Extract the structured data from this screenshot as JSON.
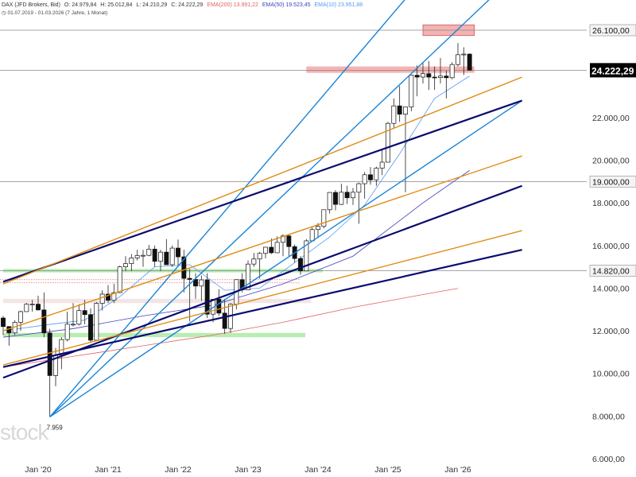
{
  "header": {
    "instrument": "DAX (JFD Brokers, Bid)",
    "open": "O: 24.979,84",
    "high": "H: 25.012,84",
    "low": "L: 24.210,29",
    "close": "C: 24.222,29",
    "ema200": "EMA(200) 13.991,22",
    "ema50": "EMA(50) 19.523,45",
    "ema10": "EMA(10) 23.951,88",
    "range": "01.07.2019 - 01.03.2026",
    "span": "(7 Jahre, 1 Monat)"
  },
  "watermark": "stock",
  "colors": {
    "ema200": "#e06060",
    "ema50": "#4040c0",
    "ema10": "#5599ee",
    "trend_blue": "#1a84d8",
    "trend_navy": "#0b0b6e",
    "trend_orange": "#e08a10",
    "zone_red": "#f2a0a0",
    "zone_green": "#a8e8a0",
    "current_price": "#000000"
  },
  "chart_data": {
    "type": "candlestick",
    "ylim": [
      6000,
      27000
    ],
    "y_ticks": [
      "6.000,00",
      "8.000,00",
      "10.000,00",
      "12.000,00",
      "14.000,00",
      "16.000,00",
      "18.000,00",
      "20.000,00",
      "22.000,00"
    ],
    "y_tick_values": [
      6000,
      8000,
      10000,
      12000,
      14000,
      16000,
      18000,
      20000,
      22000
    ],
    "x_ticks": [
      "Jan '20",
      "Jan '21",
      "Jan '22",
      "Jan '23",
      "Jan '24",
      "Jan '25",
      "Jan '26"
    ],
    "x_tick_dates": [
      "2020-01",
      "2021-01",
      "2022-01",
      "2023-01",
      "2024-01",
      "2025-01",
      "2026-01"
    ],
    "start_date": "2019-07",
    "level_labels": [
      {
        "text": "26.100,00",
        "value": 26100
      },
      {
        "text": "19.000,00",
        "value": 19000
      },
      {
        "text": "14.820,00",
        "value": 14820
      }
    ],
    "current_price": {
      "text": "24.222,29",
      "value": 24222.29
    },
    "low_annotation": {
      "text": "7.959",
      "value": 7959,
      "date": "2020-03"
    },
    "candles": [
      {
        "d": "2019-07",
        "o": 12600,
        "h": 12700,
        "l": 11800,
        "c": 12200
      },
      {
        "d": "2019-08",
        "o": 12200,
        "h": 12100,
        "l": 11300,
        "c": 11900
      },
      {
        "d": "2019-09",
        "o": 11900,
        "h": 12500,
        "l": 11800,
        "c": 12400
      },
      {
        "d": "2019-10",
        "o": 12400,
        "h": 12950,
        "l": 12000,
        "c": 12900
      },
      {
        "d": "2019-11",
        "o": 12900,
        "h": 13300,
        "l": 12900,
        "c": 13250
      },
      {
        "d": "2019-12",
        "o": 13250,
        "h": 13450,
        "l": 12900,
        "c": 13250
      },
      {
        "d": "2020-01",
        "o": 13250,
        "h": 13650,
        "l": 12950,
        "c": 12980
      },
      {
        "d": "2020-02",
        "o": 12980,
        "h": 13800,
        "l": 11700,
        "c": 11900
      },
      {
        "d": "2020-03",
        "o": 11900,
        "h": 12100,
        "l": 7959,
        "c": 9900
      },
      {
        "d": "2020-04",
        "o": 9900,
        "h": 11200,
        "l": 9400,
        "c": 10860
      },
      {
        "d": "2020-05",
        "o": 10860,
        "h": 11700,
        "l": 10200,
        "c": 11590
      },
      {
        "d": "2020-06",
        "o": 11590,
        "h": 12900,
        "l": 11500,
        "c": 12310
      },
      {
        "d": "2020-07",
        "o": 12310,
        "h": 13300,
        "l": 12200,
        "c": 12310
      },
      {
        "d": "2020-08",
        "o": 12310,
        "h": 13250,
        "l": 12250,
        "c": 12950
      },
      {
        "d": "2020-09",
        "o": 12950,
        "h": 13450,
        "l": 12300,
        "c": 12760
      },
      {
        "d": "2020-10",
        "o": 12760,
        "h": 13050,
        "l": 11450,
        "c": 11560
      },
      {
        "d": "2020-11",
        "o": 11560,
        "h": 13350,
        "l": 11550,
        "c": 13290
      },
      {
        "d": "2020-12",
        "o": 13290,
        "h": 13900,
        "l": 12950,
        "c": 13720
      },
      {
        "d": "2021-01",
        "o": 13720,
        "h": 14150,
        "l": 13300,
        "c": 13430
      },
      {
        "d": "2021-02",
        "o": 13430,
        "h": 14200,
        "l": 13300,
        "c": 13790
      },
      {
        "d": "2021-03",
        "o": 13790,
        "h": 15050,
        "l": 13800,
        "c": 15000
      },
      {
        "d": "2021-04",
        "o": 15000,
        "h": 15500,
        "l": 14800,
        "c": 15150
      },
      {
        "d": "2021-05",
        "o": 15150,
        "h": 15600,
        "l": 14800,
        "c": 15420
      },
      {
        "d": "2021-06",
        "o": 15420,
        "h": 15800,
        "l": 15300,
        "c": 15530
      },
      {
        "d": "2021-07",
        "o": 15530,
        "h": 15800,
        "l": 15000,
        "c": 15540
      },
      {
        "d": "2021-08",
        "o": 15540,
        "h": 16030,
        "l": 15500,
        "c": 15830
      },
      {
        "d": "2021-09",
        "o": 15830,
        "h": 16000,
        "l": 15000,
        "c": 15260
      },
      {
        "d": "2021-10",
        "o": 15260,
        "h": 15800,
        "l": 14800,
        "c": 15690
      },
      {
        "d": "2021-11",
        "o": 15690,
        "h": 16300,
        "l": 15100,
        "c": 15100
      },
      {
        "d": "2021-12",
        "o": 15100,
        "h": 16000,
        "l": 15000,
        "c": 15880
      },
      {
        "d": "2022-01",
        "o": 15880,
        "h": 16280,
        "l": 15000,
        "c": 15470
      },
      {
        "d": "2022-02",
        "o": 15470,
        "h": 15800,
        "l": 13800,
        "c": 14460
      },
      {
        "d": "2022-03",
        "o": 14460,
        "h": 14900,
        "l": 12440,
        "c": 14410
      },
      {
        "d": "2022-04",
        "o": 14410,
        "h": 14700,
        "l": 13500,
        "c": 14100
      },
      {
        "d": "2022-05",
        "o": 14100,
        "h": 14600,
        "l": 13400,
        "c": 14390
      },
      {
        "d": "2022-06",
        "o": 14390,
        "h": 14700,
        "l": 12600,
        "c": 12780
      },
      {
        "d": "2022-07",
        "o": 12780,
        "h": 13450,
        "l": 12400,
        "c": 13480
      },
      {
        "d": "2022-08",
        "o": 13480,
        "h": 13950,
        "l": 12700,
        "c": 12830
      },
      {
        "d": "2022-09",
        "o": 12830,
        "h": 13500,
        "l": 11860,
        "c": 12110
      },
      {
        "d": "2022-10",
        "o": 12110,
        "h": 13300,
        "l": 11900,
        "c": 13250
      },
      {
        "d": "2022-11",
        "o": 13250,
        "h": 14400,
        "l": 13000,
        "c": 14400
      },
      {
        "d": "2022-12",
        "o": 14400,
        "h": 14700,
        "l": 13800,
        "c": 13920
      },
      {
        "d": "2023-01",
        "o": 13920,
        "h": 15300,
        "l": 13900,
        "c": 15130
      },
      {
        "d": "2023-02",
        "o": 15130,
        "h": 15650,
        "l": 15000,
        "c": 15370
      },
      {
        "d": "2023-03",
        "o": 15370,
        "h": 15700,
        "l": 14450,
        "c": 15630
      },
      {
        "d": "2023-04",
        "o": 15630,
        "h": 15900,
        "l": 15400,
        "c": 15920
      },
      {
        "d": "2023-05",
        "o": 15920,
        "h": 16330,
        "l": 15600,
        "c": 15660
      },
      {
        "d": "2023-06",
        "o": 15660,
        "h": 16430,
        "l": 15700,
        "c": 16150
      },
      {
        "d": "2023-07",
        "o": 16150,
        "h": 16530,
        "l": 15500,
        "c": 16450
      },
      {
        "d": "2023-08",
        "o": 16450,
        "h": 16500,
        "l": 15500,
        "c": 15950
      },
      {
        "d": "2023-09",
        "o": 15950,
        "h": 16050,
        "l": 15200,
        "c": 15390
      },
      {
        "d": "2023-10",
        "o": 15390,
        "h": 15500,
        "l": 14630,
        "c": 14810
      },
      {
        "d": "2023-11",
        "o": 14810,
        "h": 16300,
        "l": 14800,
        "c": 16220
      },
      {
        "d": "2023-12",
        "o": 16220,
        "h": 16850,
        "l": 16200,
        "c": 16750
      },
      {
        "d": "2024-01",
        "o": 16750,
        "h": 17050,
        "l": 16350,
        "c": 16900
      },
      {
        "d": "2024-02",
        "o": 16900,
        "h": 17600,
        "l": 16800,
        "c": 17680
      },
      {
        "d": "2024-03",
        "o": 17680,
        "h": 18500,
        "l": 17500,
        "c": 18490
      },
      {
        "d": "2024-04",
        "o": 18490,
        "h": 18600,
        "l": 17650,
        "c": 17930
      },
      {
        "d": "2024-05",
        "o": 17930,
        "h": 18900,
        "l": 17900,
        "c": 18500
      },
      {
        "d": "2024-06",
        "o": 18500,
        "h": 18800,
        "l": 17950,
        "c": 18240
      },
      {
        "d": "2024-07",
        "o": 18240,
        "h": 18700,
        "l": 17900,
        "c": 18500
      },
      {
        "d": "2024-08",
        "o": 18500,
        "h": 18950,
        "l": 17020,
        "c": 18900
      },
      {
        "d": "2024-09",
        "o": 18900,
        "h": 19450,
        "l": 18200,
        "c": 19320
      },
      {
        "d": "2024-10",
        "o": 19320,
        "h": 19680,
        "l": 18850,
        "c": 19080
      },
      {
        "d": "2024-11",
        "o": 19080,
        "h": 19700,
        "l": 18800,
        "c": 19630
      },
      {
        "d": "2024-12",
        "o": 19630,
        "h": 20500,
        "l": 19300,
        "c": 19910
      },
      {
        "d": "2025-01",
        "o": 19910,
        "h": 21800,
        "l": 19900,
        "c": 21730
      },
      {
        "d": "2025-02",
        "o": 21730,
        "h": 22900,
        "l": 21500,
        "c": 22550
      },
      {
        "d": "2025-03",
        "o": 22550,
        "h": 23480,
        "l": 21800,
        "c": 22160
      },
      {
        "d": "2025-04",
        "o": 22160,
        "h": 22500,
        "l": 18500,
        "c": 22500
      },
      {
        "d": "2025-05",
        "o": 22500,
        "h": 24000,
        "l": 22300,
        "c": 23990
      },
      {
        "d": "2025-06",
        "o": 23990,
        "h": 24450,
        "l": 23000,
        "c": 23900
      },
      {
        "d": "2025-07",
        "o": 23900,
        "h": 24600,
        "l": 23600,
        "c": 24060
      },
      {
        "d": "2025-08",
        "o": 24060,
        "h": 24650,
        "l": 23300,
        "c": 23900
      },
      {
        "d": "2025-09",
        "o": 23900,
        "h": 24400,
        "l": 23300,
        "c": 23880
      },
      {
        "d": "2025-10",
        "o": 23880,
        "h": 24800,
        "l": 23600,
        "c": 23950
      },
      {
        "d": "2025-11",
        "o": 23950,
        "h": 24200,
        "l": 22900,
        "c": 23870
      },
      {
        "d": "2025-12",
        "o": 23870,
        "h": 24600,
        "l": 23800,
        "c": 24490
      },
      {
        "d": "2026-01",
        "o": 24490,
        "h": 25500,
        "l": 24400,
        "c": 24950
      },
      {
        "d": "2026-02",
        "o": 24950,
        "h": 25300,
        "l": 24000,
        "c": 24980
      },
      {
        "d": "2026-03",
        "o": 24979.84,
        "h": 25012.84,
        "l": 24210.29,
        "c": 24222.29
      }
    ],
    "ema200": [
      {
        "d": "2019-07",
        "v": 10300
      },
      {
        "d": "2020-07",
        "v": 10800
      },
      {
        "d": "2021-07",
        "v": 11300
      },
      {
        "d": "2022-07",
        "v": 11800
      },
      {
        "d": "2023-07",
        "v": 12400
      },
      {
        "d": "2024-07",
        "v": 13100
      },
      {
        "d": "2025-07",
        "v": 13700
      },
      {
        "d": "2026-01",
        "v": 13991
      }
    ],
    "ema50": [
      {
        "d": "2019-07",
        "v": 11700
      },
      {
        "d": "2020-07",
        "v": 12100
      },
      {
        "d": "2021-07",
        "v": 12700
      },
      {
        "d": "2022-07",
        "v": 13200
      },
      {
        "d": "2023-07",
        "v": 14200
      },
      {
        "d": "2024-07",
        "v": 15500
      },
      {
        "d": "2025-07",
        "v": 18000
      },
      {
        "d": "2026-03",
        "v": 19523
      }
    ],
    "ema10": [
      {
        "d": "2019-07",
        "v": 12000
      },
      {
        "d": "2020-03",
        "v": 12300
      },
      {
        "d": "2020-09",
        "v": 12500
      },
      {
        "d": "2021-03",
        "v": 13600
      },
      {
        "d": "2021-09",
        "v": 15000
      },
      {
        "d": "2022-03",
        "v": 15100
      },
      {
        "d": "2022-09",
        "v": 13900
      },
      {
        "d": "2023-03",
        "v": 14000
      },
      {
        "d": "2023-09",
        "v": 15200
      },
      {
        "d": "2024-03",
        "v": 16400
      },
      {
        "d": "2024-09",
        "v": 17900
      },
      {
        "d": "2025-03",
        "v": 20300
      },
      {
        "d": "2025-09",
        "v": 22900
      },
      {
        "d": "2026-03",
        "v": 23951
      }
    ],
    "horizontal_levels": [
      {
        "value": 26100,
        "color": "#888888"
      },
      {
        "value": 24222.29,
        "color": "#888888"
      },
      {
        "value": 19000,
        "color": "#888888"
      },
      {
        "value": 14820,
        "color": "#888888"
      }
    ],
    "zones": [
      {
        "from": "2025-07",
        "to": "2026-03",
        "y0": 25850,
        "y1": 26350,
        "color": "#f2a0a0"
      },
      {
        "from": "2023-11",
        "to": "2026-03",
        "y0": 24100,
        "y1": 24400,
        "color": "#f2a0a0"
      },
      {
        "from": "2019-07",
        "to": "2024-01",
        "y0": 14740,
        "y1": 14900,
        "color": "#a8e8a0"
      },
      {
        "from": "2019-07",
        "to": "2023-10",
        "y0": 11700,
        "y1": 11900,
        "color": "#a8e8a0"
      },
      {
        "from": "2019-07",
        "to": "2023-11",
        "y0": 13300,
        "y1": 13500,
        "color": "#f0dede"
      }
    ],
    "dotted_levels": [
      {
        "from": "2019-07",
        "to": "2023-10",
        "value": 14400,
        "color": "#e07070"
      },
      {
        "from": "2019-07",
        "to": "2023-10",
        "value": 14250,
        "color": "#e07070"
      }
    ],
    "trendlines": [
      {
        "x0": "2020-03",
        "y0": 7959,
        "x1": "2026-12",
        "y1": 34000,
        "color": "#1a84d8"
      },
      {
        "x0": "2020-03",
        "y0": 7959,
        "x1": "2026-12",
        "y1": 29000,
        "color": "#1a84d8"
      },
      {
        "x0": "2020-03",
        "y0": 7959,
        "x1": "2026-12",
        "y1": 22800,
        "color": "#1a84d8"
      },
      {
        "x0": "2019-07",
        "y0": 14300,
        "x1": "2026-12",
        "y1": 22800,
        "color": "#0b0b6e"
      },
      {
        "x0": "2019-07",
        "y0": 9800,
        "x1": "2026-12",
        "y1": 18800,
        "color": "#0b0b6e"
      },
      {
        "x0": "2019-07",
        "y0": 10300,
        "x1": "2026-12",
        "y1": 15800,
        "color": "#0b0b6e"
      },
      {
        "x0": "2019-07",
        "y0": 14200,
        "x1": "2026-12",
        "y1": 23900,
        "color": "#e08a10"
      },
      {
        "x0": "2019-07",
        "y0": 12000,
        "x1": "2026-12",
        "y1": 20200,
        "color": "#e08a10"
      },
      {
        "x0": "2019-07",
        "y0": 10400,
        "x1": "2026-12",
        "y1": 16700,
        "color": "#e08a10"
      }
    ]
  }
}
